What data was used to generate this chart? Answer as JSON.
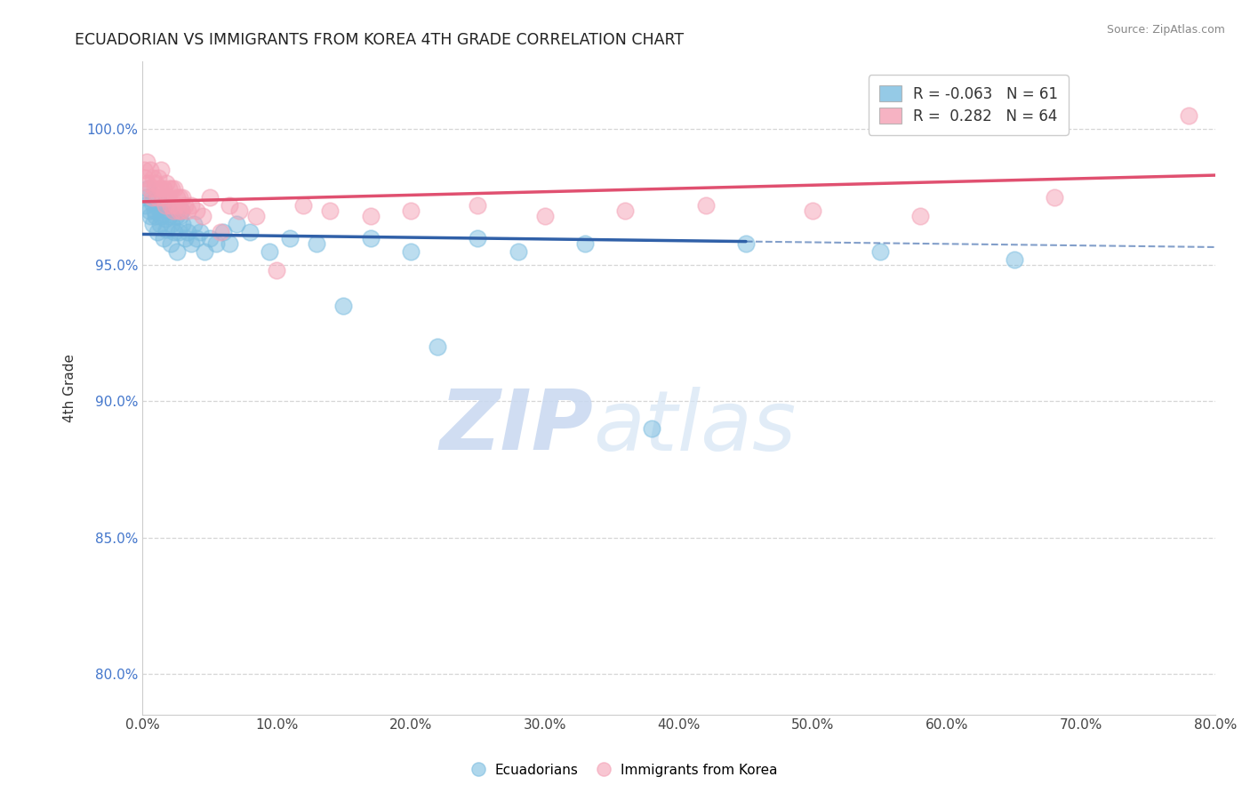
{
  "title": "ECUADORIAN VS IMMIGRANTS FROM KOREA 4TH GRADE CORRELATION CHART",
  "source": "Source: ZipAtlas.com",
  "ylabel_text": "4th Grade",
  "x_tick_labels": [
    "0.0%",
    "10.0%",
    "20.0%",
    "30.0%",
    "40.0%",
    "50.0%",
    "60.0%",
    "70.0%",
    "80.0%"
  ],
  "x_tick_vals": [
    0.0,
    10.0,
    20.0,
    30.0,
    40.0,
    50.0,
    60.0,
    70.0,
    80.0
  ],
  "y_tick_labels": [
    "80.0%",
    "85.0%",
    "90.0%",
    "95.0%",
    "100.0%"
  ],
  "y_tick_vals": [
    80.0,
    85.0,
    90.0,
    95.0,
    100.0
  ],
  "xlim": [
    0.0,
    80.0
  ],
  "ylim": [
    78.5,
    102.5
  ],
  "blue_R": -0.063,
  "blue_N": 61,
  "pink_R": 0.282,
  "pink_N": 64,
  "blue_color": "#7bbde0",
  "pink_color": "#f4a0b5",
  "blue_line_color": "#3060a8",
  "pink_line_color": "#e05070",
  "legend_blue_label": "Ecuadorians",
  "legend_pink_label": "Immigrants from Korea",
  "watermark_zip": "ZIP",
  "watermark_atlas": "atlas",
  "blue_scatter_x": [
    0.2,
    0.3,
    0.4,
    0.5,
    0.6,
    0.7,
    0.8,
    0.9,
    1.0,
    1.1,
    1.2,
    1.3,
    1.4,
    1.5,
    1.6,
    1.7,
    1.8,
    1.9,
    2.0,
    2.1,
    2.2,
    2.3,
    2.4,
    2.5,
    2.6,
    2.7,
    2.8,
    2.9,
    3.0,
    3.2,
    3.4,
    3.6,
    3.8,
    4.0,
    4.3,
    4.6,
    5.0,
    5.5,
    6.0,
    6.5,
    7.0,
    8.0,
    9.5,
    11.0,
    13.0,
    15.0,
    17.0,
    20.0,
    22.0,
    25.0,
    28.0,
    33.0,
    38.0,
    45.0,
    55.0,
    65.0
  ],
  "blue_scatter_y": [
    97.2,
    97.5,
    97.8,
    97.0,
    96.8,
    97.3,
    96.5,
    97.0,
    96.8,
    96.2,
    97.1,
    96.5,
    96.8,
    97.2,
    96.0,
    96.7,
    96.3,
    97.0,
    96.8,
    95.8,
    96.5,
    97.0,
    96.2,
    96.8,
    95.5,
    96.2,
    96.8,
    97.0,
    96.5,
    96.0,
    96.2,
    95.8,
    96.5,
    96.0,
    96.2,
    95.5,
    96.0,
    95.8,
    96.2,
    95.8,
    96.5,
    96.2,
    95.5,
    96.0,
    95.8,
    93.5,
    96.0,
    95.5,
    92.0,
    96.0,
    95.5,
    95.8,
    89.0,
    95.8,
    95.5,
    95.2
  ],
  "pink_scatter_x": [
    0.1,
    0.2,
    0.3,
    0.4,
    0.5,
    0.6,
    0.7,
    0.8,
    0.9,
    1.0,
    1.1,
    1.2,
    1.3,
    1.4,
    1.5,
    1.6,
    1.7,
    1.8,
    1.9,
    2.0,
    2.1,
    2.2,
    2.3,
    2.4,
    2.5,
    2.6,
    2.7,
    2.8,
    2.9,
    3.0,
    3.2,
    3.4,
    3.6,
    4.0,
    4.5,
    5.0,
    5.8,
    6.5,
    7.2,
    8.5,
    10.0,
    12.0,
    14.0,
    17.0,
    20.0,
    25.0,
    30.0,
    36.0,
    42.0,
    50.0,
    58.0,
    68.0,
    78.0
  ],
  "pink_scatter_y": [
    98.5,
    98.2,
    98.8,
    98.0,
    97.8,
    98.5,
    97.5,
    98.2,
    97.8,
    98.0,
    97.5,
    98.2,
    97.8,
    98.5,
    97.5,
    97.8,
    97.2,
    98.0,
    97.5,
    97.8,
    97.2,
    97.8,
    97.0,
    97.8,
    97.2,
    97.5,
    97.0,
    97.5,
    97.0,
    97.5,
    97.2,
    97.0,
    97.2,
    97.0,
    96.8,
    97.5,
    96.2,
    97.2,
    97.0,
    96.8,
    94.8,
    97.2,
    97.0,
    96.8,
    97.0,
    97.2,
    96.8,
    97.0,
    97.2,
    97.0,
    96.8,
    97.5,
    100.5
  ]
}
